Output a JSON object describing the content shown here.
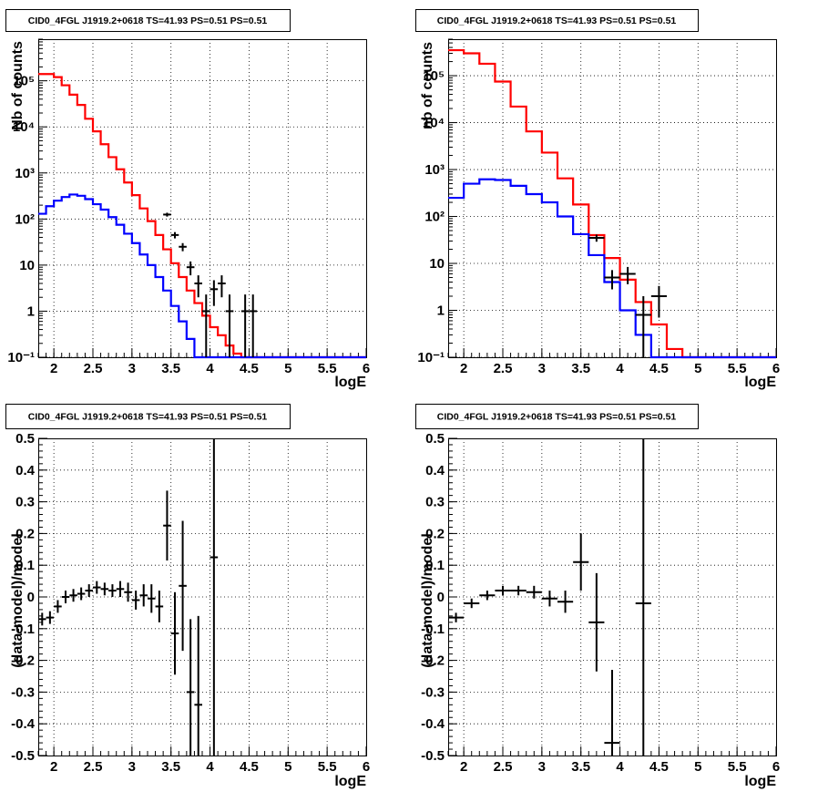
{
  "colors": {
    "total_model": "#ff0000",
    "source_model": "#0000ff",
    "data": "#000000",
    "grid": "#000000"
  },
  "chart_data": [
    {
      "type": "line",
      "title": "CID0_4FGL J1919.2+0618 TS=41.93 PS=0.51 PS=0.51",
      "xlabel": "logE",
      "ylabel": "Nb of counts",
      "xlim": [
        1.8,
        6
      ],
      "ylim": [
        0.1,
        800000
      ],
      "yscale": "log",
      "grid": true,
      "x_ticks": [
        "2",
        "2.5",
        "3",
        "3.5",
        "4",
        "4.5",
        "5",
        "5.5",
        "6"
      ],
      "y_ticks": [
        "10⁻¹",
        "1",
        "10",
        "10²",
        "10³",
        "10⁴",
        "10⁵"
      ],
      "bin_edges": [
        1.8,
        1.9,
        2.0,
        2.1,
        2.2,
        2.3,
        2.4,
        2.5,
        2.6,
        2.7,
        2.8,
        2.9,
        3.0,
        3.1,
        3.2,
        3.3,
        3.4,
        3.5,
        3.6,
        3.7,
        3.8,
        3.9,
        4.0,
        4.1,
        4.2,
        4.3,
        4.4,
        4.5,
        4.6,
        4.7,
        4.8,
        4.9,
        5.0,
        5.1,
        5.2,
        5.3,
        5.4,
        5.5,
        5.6,
        5.7,
        5.8,
        5.9,
        6.0
      ],
      "series": [
        {
          "role": "total_model",
          "step": true,
          "values": [
            140000,
            140000,
            120000,
            80000,
            50000,
            30000,
            15000,
            8000,
            4200,
            2200,
            1200,
            620,
            330,
            170,
            90,
            45,
            22,
            11,
            5.5,
            2.8,
            1.5,
            0.8,
            0.45,
            0.3,
            0.18,
            0.12,
            0.1,
            0.1,
            0.1,
            0.1,
            0.1,
            0.1,
            0.1,
            0.1,
            0.1,
            0.1,
            0.1,
            0.1,
            0.1,
            0.1,
            0.1,
            0.1
          ]
        },
        {
          "role": "source_model",
          "step": true,
          "values": [
            130,
            190,
            250,
            300,
            340,
            320,
            270,
            210,
            160,
            110,
            75,
            48,
            30,
            17,
            10,
            5.5,
            2.8,
            1.3,
            0.6,
            0.25,
            0.1,
            0.1,
            0.1,
            0.1,
            0.1,
            0.1,
            0.1,
            0.1,
            0.1,
            0.1,
            0.1,
            0.1,
            0.1,
            0.1,
            0.1,
            0.1,
            0.1,
            0.1,
            0.1,
            0.1,
            0.1,
            0.1
          ]
        }
      ],
      "points": [
        {
          "x": 3.45,
          "y": 125,
          "yerr": [
            12,
            12
          ]
        },
        {
          "x": 3.55,
          "y": 45,
          "yerr": [
            7,
            7
          ]
        },
        {
          "x": 3.65,
          "y": 25,
          "yerr": [
            5,
            5
          ]
        },
        {
          "x": 3.75,
          "y": 9,
          "yerr": [
            3,
            3
          ]
        },
        {
          "x": 3.85,
          "y": 4,
          "yerr": [
            2,
            2
          ]
        },
        {
          "x": 3.95,
          "y": 1,
          "yerr": [
            0.9,
            1.3
          ]
        },
        {
          "x": 4.05,
          "y": 3,
          "yerr": [
            1.7,
            1.7
          ]
        },
        {
          "x": 4.15,
          "y": 4,
          "yerr": [
            2,
            2
          ]
        },
        {
          "x": 4.25,
          "y": 1,
          "yerr": [
            0.9,
            1.3
          ]
        },
        {
          "x": 4.45,
          "y": 1,
          "yerr": [
            0.9,
            1.3
          ]
        },
        {
          "x": 4.55,
          "y": 1,
          "yerr": [
            0.9,
            1.3
          ]
        }
      ]
    },
    {
      "type": "line",
      "title": "CID0_4FGL J1919.2+0618 TS=41.93 PS=0.51 PS=0.51",
      "xlabel": "logE",
      "ylabel": "nb of counts",
      "xlim": [
        1.8,
        6
      ],
      "ylim": [
        0.1,
        600000
      ],
      "yscale": "log",
      "grid": true,
      "x_ticks": [
        "2",
        "2.5",
        "3",
        "3.5",
        "4",
        "4.5",
        "5",
        "5.5",
        "6"
      ],
      "y_ticks": [
        "10⁻¹",
        "1",
        "10",
        "10²",
        "10³",
        "10⁴",
        "10⁵"
      ],
      "bin_edges": [
        1.8,
        2.0,
        2.2,
        2.4,
        2.6,
        2.8,
        3.0,
        3.2,
        3.4,
        3.6,
        3.8,
        4.0,
        4.2,
        4.4,
        4.6,
        4.8,
        5.0,
        5.2,
        5.4,
        5.6,
        5.8,
        6.0
      ],
      "series": [
        {
          "role": "total_model",
          "step": true,
          "values": [
            350000,
            300000,
            180000,
            75000,
            22000,
            6500,
            2300,
            650,
            180,
            40,
            13,
            4.5,
            1.5,
            0.5,
            0.15,
            0.1,
            0.1,
            0.1,
            0.1,
            0.1,
            0.1
          ]
        },
        {
          "role": "source_model",
          "step": true,
          "values": [
            250,
            500,
            620,
            600,
            450,
            300,
            200,
            100,
            42,
            15,
            4,
            1,
            0.3,
            0.1,
            0.1,
            0.1,
            0.1,
            0.1,
            0.1,
            0.1,
            0.1
          ]
        }
      ],
      "points": [
        {
          "x": 3.7,
          "y": 35,
          "yerr": [
            6,
            6
          ]
        },
        {
          "x": 3.9,
          "y": 5,
          "yerr": [
            2.2,
            2.2
          ]
        },
        {
          "x": 4.1,
          "y": 6,
          "yerr": [
            2.4,
            2.4
          ]
        },
        {
          "x": 4.3,
          "y": 0.8,
          "yerr": [
            0.75,
            1.2
          ]
        },
        {
          "x": 4.5,
          "y": 2,
          "yerr": [
            1.3,
            1.3
          ]
        }
      ]
    },
    {
      "type": "scatter",
      "title": "CID0_4FGL J1919.2+0618 TS=41.93 PS=0.51 PS=0.51",
      "xlabel": "logE",
      "ylabel": "(data-model)/model",
      "xlim": [
        1.8,
        6
      ],
      "ylim": [
        -0.5,
        0.5
      ],
      "yscale": "linear",
      "grid": true,
      "x_ticks": [
        "2",
        "2.5",
        "3",
        "3.5",
        "4",
        "4.5",
        "5",
        "5.5",
        "6"
      ],
      "y_ticks": [
        "-0.5",
        "-0.4",
        "-0.3",
        "-0.2",
        "-0.1",
        "0",
        "0.1",
        "0.2",
        "0.3",
        "0.4",
        "0.5"
      ],
      "points": [
        {
          "x": 1.85,
          "y": -0.07,
          "xerr": 0.05,
          "yerr": 0.02
        },
        {
          "x": 1.95,
          "y": -0.065,
          "xerr": 0.05,
          "yerr": 0.02
        },
        {
          "x": 2.05,
          "y": -0.03,
          "xerr": 0.05,
          "yerr": 0.02
        },
        {
          "x": 2.15,
          "y": 0.0,
          "xerr": 0.05,
          "yerr": 0.02
        },
        {
          "x": 2.25,
          "y": 0.005,
          "xerr": 0.05,
          "yerr": 0.02
        },
        {
          "x": 2.35,
          "y": 0.01,
          "xerr": 0.05,
          "yerr": 0.02
        },
        {
          "x": 2.45,
          "y": 0.02,
          "xerr": 0.05,
          "yerr": 0.02
        },
        {
          "x": 2.55,
          "y": 0.03,
          "xerr": 0.05,
          "yerr": 0.02
        },
        {
          "x": 2.65,
          "y": 0.025,
          "xerr": 0.05,
          "yerr": 0.02
        },
        {
          "x": 2.75,
          "y": 0.02,
          "xerr": 0.05,
          "yerr": 0.02
        },
        {
          "x": 2.85,
          "y": 0.025,
          "xerr": 0.05,
          "yerr": 0.025
        },
        {
          "x": 2.95,
          "y": 0.015,
          "xerr": 0.05,
          "yerr": 0.03
        },
        {
          "x": 3.05,
          "y": -0.01,
          "xerr": 0.05,
          "yerr": 0.03
        },
        {
          "x": 3.15,
          "y": 0.005,
          "xerr": 0.05,
          "yerr": 0.035
        },
        {
          "x": 3.25,
          "y": -0.005,
          "xerr": 0.05,
          "yerr": 0.045
        },
        {
          "x": 3.35,
          "y": -0.03,
          "xerr": 0.05,
          "yerr": 0.05
        },
        {
          "x": 3.45,
          "y": 0.225,
          "xerr": 0.05,
          "yerr": 0.11
        },
        {
          "x": 3.55,
          "y": -0.115,
          "xerr": 0.05,
          "yerr": 0.13
        },
        {
          "x": 3.65,
          "y": 0.035,
          "xerr": 0.05,
          "yerr": 0.205
        },
        {
          "x": 3.75,
          "y": -0.3,
          "xerr": 0.05,
          "yerr": 0.23
        },
        {
          "x": 3.85,
          "y": -0.34,
          "xerr": 0.05,
          "yerr": 0.28
        },
        {
          "x": 4.05,
          "y": 0.125,
          "xerr": 0.05,
          "yerr": 0.7
        }
      ]
    },
    {
      "type": "scatter",
      "title": "CID0_4FGL J1919.2+0618 TS=41.93 PS=0.51 PS=0.51",
      "xlabel": "logE",
      "ylabel": "(data-model)/model",
      "xlim": [
        1.8,
        6
      ],
      "ylim": [
        -0.5,
        0.5
      ],
      "yscale": "linear",
      "grid": true,
      "x_ticks": [
        "2",
        "2.5",
        "3",
        "3.5",
        "4",
        "4.5",
        "5",
        "5.5",
        "6"
      ],
      "y_ticks": [
        "-0.5",
        "-0.4",
        "-0.3",
        "-0.2",
        "-0.1",
        "0",
        "0.1",
        "0.2",
        "0.3",
        "0.4",
        "0.5"
      ],
      "points": [
        {
          "x": 1.9,
          "y": -0.065,
          "xerr": 0.1,
          "yerr": 0.015
        },
        {
          "x": 2.1,
          "y": -0.02,
          "xerr": 0.1,
          "yerr": 0.015
        },
        {
          "x": 2.3,
          "y": 0.005,
          "xerr": 0.1,
          "yerr": 0.015
        },
        {
          "x": 2.5,
          "y": 0.02,
          "xerr": 0.1,
          "yerr": 0.015
        },
        {
          "x": 2.7,
          "y": 0.02,
          "xerr": 0.1,
          "yerr": 0.015
        },
        {
          "x": 2.9,
          "y": 0.015,
          "xerr": 0.1,
          "yerr": 0.02
        },
        {
          "x": 3.1,
          "y": -0.005,
          "xerr": 0.1,
          "yerr": 0.025
        },
        {
          "x": 3.3,
          "y": -0.015,
          "xerr": 0.1,
          "yerr": 0.035
        },
        {
          "x": 3.5,
          "y": 0.11,
          "xerr": 0.1,
          "yerr": 0.09
        },
        {
          "x": 3.7,
          "y": -0.08,
          "xerr": 0.1,
          "yerr": 0.155
        },
        {
          "x": 3.9,
          "y": -0.46,
          "xerr": 0.1,
          "yerr": 0.23
        },
        {
          "x": 4.3,
          "y": -0.02,
          "xerr": 0.1,
          "yerr": 0.9
        }
      ]
    }
  ]
}
